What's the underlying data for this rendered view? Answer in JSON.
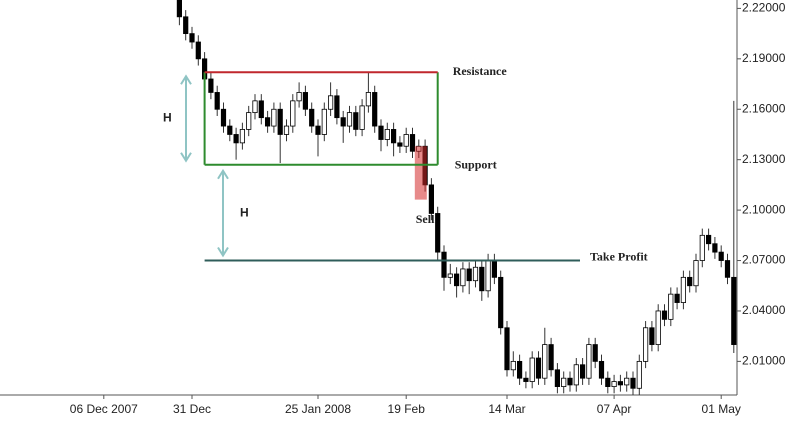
{
  "chart_data": {
    "type": "candlestick",
    "categories": [
      null,
      null,
      null,
      null,
      null,
      null,
      null,
      null,
      null,
      null,
      null,
      null,
      null,
      null,
      null,
      null,
      "06 Dec 2007",
      null,
      null,
      null,
      null,
      null,
      null,
      null,
      null,
      null,
      null,
      null,
      null,
      null,
      "31 Dec",
      null,
      null,
      null,
      null,
      null,
      null,
      null,
      null,
      null,
      null,
      null,
      null,
      null,
      null,
      null,
      null,
      null,
      null,
      null,
      "25 Jan 2008",
      null,
      null,
      null,
      null,
      null,
      null,
      null,
      null,
      null,
      null,
      null,
      null,
      null,
      "19 Feb",
      null,
      null,
      null,
      null,
      null,
      null,
      null,
      null,
      null,
      null,
      null,
      null,
      null,
      null,
      null,
      "14 Mar",
      null,
      null,
      null,
      null,
      null,
      null,
      null,
      null,
      null,
      null,
      null,
      null,
      null,
      null,
      null,
      null,
      "07 Apr",
      null,
      null,
      null,
      null,
      null,
      null,
      null,
      null,
      null,
      null,
      null,
      null,
      null,
      null,
      null,
      null,
      "01 May",
      null,
      null
    ],
    "open": [
      null,
      null,
      null,
      null,
      null,
      null,
      null,
      null,
      null,
      null,
      null,
      null,
      null,
      null,
      null,
      null,
      null,
      null,
      null,
      null,
      null,
      null,
      null,
      null,
      null,
      null,
      null,
      null,
      2.225,
      2.215,
      2.205,
      2.2,
      2.19,
      2.178,
      2.17,
      2.16,
      2.15,
      2.145,
      2.14,
      2.148,
      2.158,
      2.165,
      2.155,
      2.15,
      2.16,
      2.145,
      2.15,
      2.165,
      2.17,
      2.16,
      2.15,
      2.145,
      2.16,
      2.168,
      2.155,
      2.15,
      2.158,
      2.148,
      2.162,
      2.17,
      2.15,
      2.142,
      2.148,
      2.14,
      2.138,
      2.145,
      2.135,
      2.138,
      2.115,
      2.098,
      2.075,
      2.06,
      2.062,
      2.055,
      2.065,
      2.058,
      2.066,
      2.052,
      2.07,
      2.06,
      2.03,
      2.005,
      2.01,
      2.0,
      1.998,
      2.012,
      2.0,
      2.02,
      2.005,
      1.995,
      2.0,
      1.996,
      2.008,
      2.0,
      2.02,
      2.01,
      2.0,
      1.995,
      1.998,
      1.996,
      2.0,
      1.994,
      2.01,
      2.03,
      2.02,
      2.04,
      2.035,
      2.05,
      2.045,
      2.06,
      2.055,
      2.07,
      2.085,
      2.08,
      2.075,
      2.07,
      2.06
    ],
    "high": [
      null,
      null,
      null,
      null,
      null,
      null,
      null,
      null,
      null,
      null,
      null,
      null,
      null,
      null,
      null,
      null,
      null,
      null,
      null,
      null,
      null,
      null,
      null,
      null,
      null,
      null,
      null,
      null,
      2.225,
      2.219,
      2.209,
      2.204,
      2.194,
      2.182,
      2.174,
      2.164,
      2.154,
      2.149,
      2.152,
      2.162,
      2.169,
      2.169,
      2.159,
      2.164,
      2.164,
      2.154,
      2.169,
      2.176,
      2.174,
      2.164,
      2.154,
      2.164,
      2.176,
      2.172,
      2.159,
      2.162,
      2.162,
      2.166,
      2.182,
      2.174,
      2.154,
      2.152,
      2.152,
      2.144,
      2.149,
      2.149,
      2.142,
      2.142,
      2.119,
      2.102,
      2.079,
      2.068,
      2.066,
      2.069,
      2.069,
      2.07,
      2.07,
      2.074,
      2.074,
      2.064,
      2.034,
      2.016,
      2.014,
      2.004,
      2.016,
      2.016,
      2.03,
      2.024,
      2.009,
      2.004,
      2.004,
      2.012,
      2.012,
      2.024,
      2.024,
      2.014,
      2.004,
      2.002,
      2.002,
      2.004,
      2.004,
      2.014,
      2.034,
      2.034,
      2.044,
      2.044,
      2.054,
      2.054,
      2.064,
      2.064,
      2.074,
      2.089,
      2.089,
      2.084,
      2.079,
      2.074,
      2.165
    ],
    "low": [
      null,
      null,
      null,
      null,
      null,
      null,
      null,
      null,
      null,
      null,
      null,
      null,
      null,
      null,
      null,
      null,
      null,
      null,
      null,
      null,
      null,
      null,
      null,
      null,
      null,
      null,
      null,
      null,
      2.21,
      2.201,
      2.196,
      2.186,
      2.174,
      2.166,
      2.156,
      2.146,
      2.141,
      2.13,
      2.136,
      2.144,
      2.154,
      2.151,
      2.146,
      2.146,
      2.128,
      2.141,
      2.146,
      2.161,
      2.156,
      2.146,
      2.132,
      2.141,
      2.156,
      2.151,
      2.14,
      2.146,
      2.144,
      2.144,
      2.158,
      2.146,
      2.135,
      2.138,
      2.132,
      2.134,
      2.134,
      2.131,
      2.131,
      2.111,
      2.094,
      2.07,
      2.052,
      2.056,
      2.048,
      2.051,
      2.05,
      2.054,
      2.046,
      2.048,
      2.056,
      2.026,
      2.001,
      2.001,
      1.996,
      1.994,
      1.994,
      1.996,
      1.996,
      2.001,
      1.991,
      1.991,
      1.992,
      1.992,
      1.996,
      1.996,
      2.006,
      1.996,
      1.991,
      1.991,
      1.992,
      1.992,
      1.99,
      1.99,
      2.006,
      2.016,
      2.016,
      2.031,
      2.031,
      2.041,
      2.041,
      2.051,
      2.051,
      2.066,
      2.076,
      2.071,
      2.066,
      2.056,
      2.015
    ],
    "close": [
      null,
      null,
      null,
      null,
      null,
      null,
      null,
      null,
      null,
      null,
      null,
      null,
      null,
      null,
      null,
      null,
      null,
      null,
      null,
      null,
      null,
      null,
      null,
      null,
      null,
      null,
      null,
      null,
      2.215,
      2.205,
      2.2,
      2.19,
      2.178,
      2.17,
      2.16,
      2.15,
      2.145,
      2.14,
      2.148,
      2.158,
      2.165,
      2.155,
      2.15,
      2.16,
      2.145,
      2.15,
      2.165,
      2.17,
      2.16,
      2.15,
      2.145,
      2.16,
      2.168,
      2.155,
      2.15,
      2.158,
      2.148,
      2.162,
      2.17,
      2.15,
      2.142,
      2.148,
      2.14,
      2.138,
      2.145,
      2.135,
      2.138,
      2.115,
      2.098,
      2.075,
      2.06,
      2.062,
      2.055,
      2.065,
      2.058,
      2.066,
      2.052,
      2.07,
      2.06,
      2.03,
      2.005,
      2.01,
      2.0,
      1.998,
      2.012,
      2.0,
      2.02,
      2.005,
      1.995,
      2.0,
      1.996,
      2.008,
      2.0,
      2.02,
      2.01,
      2.0,
      1.995,
      1.998,
      1.996,
      2.0,
      1.994,
      2.01,
      2.03,
      2.02,
      2.04,
      2.035,
      2.05,
      2.045,
      2.06,
      2.055,
      2.07,
      2.085,
      2.08,
      2.075,
      2.07,
      2.06,
      2.02
    ],
    "up_color": "#ffffff",
    "down_color": "#000000",
    "ylim": [
      1.99,
      2.225
    ],
    "yticks": [
      {
        "value": 2.01,
        "label": "2.01000"
      },
      {
        "value": 2.04,
        "label": "2.04000"
      },
      {
        "value": 2.07,
        "label": "2.07000"
      },
      {
        "value": 2.1,
        "label": "2.10000"
      },
      {
        "value": 2.13,
        "label": "2.13000"
      },
      {
        "value": 2.16,
        "label": "2.16000"
      },
      {
        "value": 2.19,
        "label": "2.19000"
      },
      {
        "value": 2.22,
        "label": "2.22000"
      }
    ],
    "grid": false,
    "annotations": {
      "resistance": {
        "label": "Resistance",
        "value": 2.182,
        "color": "#c0272d"
      },
      "support": {
        "label": "Support",
        "value": 2.127,
        "color": "#2e8b2e"
      },
      "take_profit": {
        "label": "Take Profit",
        "value": 2.07,
        "color": "#e8812a"
      },
      "sell": {
        "label": "Sell",
        "color": "#d42a2a"
      },
      "height_label": "H"
    }
  }
}
